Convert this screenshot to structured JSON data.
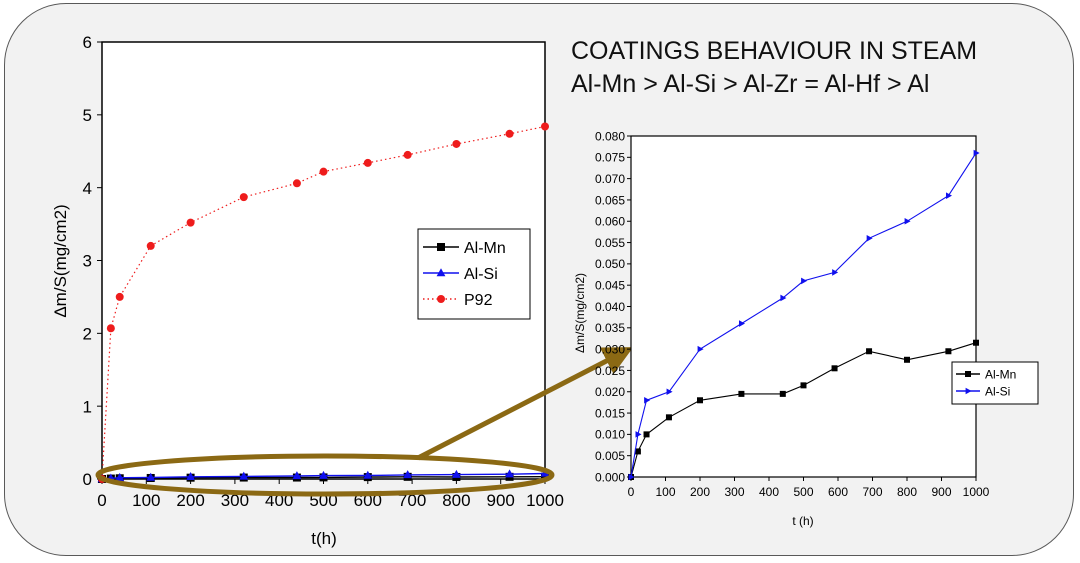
{
  "slide": {
    "title_line1": "COATINGS BEHAVIOUR IN STEAM",
    "title_line2": "Al-Mn > Al-Si > Al-Zr = Al-Hf > Al"
  },
  "colors": {
    "al_mn": "#000000",
    "al_si": "#1010ee",
    "p92": "#ee1c1c",
    "highlight": "#8b6914",
    "panel_bg": "#f2f2f2"
  },
  "chart_data": [
    {
      "type": "line",
      "xlabel": "t(h)",
      "ylabel": "Δm/S(mg/cm2)",
      "xlim": [
        0,
        1000
      ],
      "ylim": [
        0,
        6
      ],
      "xticks": [
        0,
        100,
        200,
        300,
        400,
        500,
        600,
        700,
        800,
        900,
        1000
      ],
      "yticks": [
        0,
        1,
        2,
        3,
        4,
        5,
        6
      ],
      "legend_position": "right",
      "series": [
        {
          "name": "Al-Mn",
          "marker": "square",
          "line": "solid",
          "x": [
            0,
            20,
            40,
            110,
            200,
            320,
            440,
            500,
            600,
            690,
            800,
            920,
            1000
          ],
          "y": [
            0,
            0.006,
            0.01,
            0.014,
            0.018,
            0.02,
            0.02,
            0.022,
            0.026,
            0.03,
            0.028,
            0.03,
            0.032
          ]
        },
        {
          "name": "Al-Si",
          "marker": "triangle-up",
          "line": "solid",
          "x": [
            0,
            20,
            40,
            110,
            200,
            320,
            440,
            500,
            600,
            690,
            800,
            920,
            1000
          ],
          "y": [
            0,
            0.01,
            0.018,
            0.02,
            0.03,
            0.036,
            0.042,
            0.046,
            0.048,
            0.056,
            0.06,
            0.066,
            0.076
          ]
        },
        {
          "name": "P92",
          "marker": "circle",
          "line": "dotted",
          "x": [
            0,
            20,
            40,
            110,
            200,
            320,
            440,
            500,
            600,
            690,
            800,
            920,
            1000
          ],
          "y": [
            0,
            2.07,
            2.5,
            3.2,
            3.52,
            3.87,
            4.06,
            4.22,
            4.34,
            4.45,
            4.6,
            4.74,
            4.84
          ]
        }
      ]
    },
    {
      "type": "line",
      "xlabel": "t (h)",
      "ylabel": "Δm/S(mg/cm2)",
      "xlim": [
        0,
        1000
      ],
      "ylim": [
        0,
        0.08
      ],
      "xticks": [
        0,
        100,
        200,
        300,
        400,
        500,
        600,
        700,
        800,
        900,
        1000
      ],
      "yticks": [
        "0.000",
        "0.005",
        "0.010",
        "0.015",
        "0.020",
        "0.025",
        "0.030",
        "0.035",
        "0.040",
        "0.045",
        "0.050",
        "0.055",
        "0.060",
        "0.065",
        "0.070",
        "0.075",
        "0.080"
      ],
      "legend_position": "right",
      "series": [
        {
          "name": "Al-Mn",
          "marker": "square",
          "line": "solid",
          "x": [
            0,
            20,
            45,
            110,
            200,
            320,
            440,
            500,
            590,
            690,
            800,
            920,
            1000
          ],
          "y": [
            0,
            0.006,
            0.01,
            0.014,
            0.018,
            0.0195,
            0.0195,
            0.0215,
            0.0255,
            0.0295,
            0.0275,
            0.0295,
            0.0315
          ]
        },
        {
          "name": "Al-Si",
          "marker": "triangle-right",
          "line": "solid",
          "x": [
            0,
            20,
            45,
            110,
            200,
            320,
            440,
            500,
            590,
            690,
            800,
            920,
            1000
          ],
          "y": [
            0,
            0.01,
            0.018,
            0.02,
            0.03,
            0.036,
            0.042,
            0.046,
            0.048,
            0.056,
            0.06,
            0.066,
            0.076
          ]
        }
      ]
    }
  ]
}
